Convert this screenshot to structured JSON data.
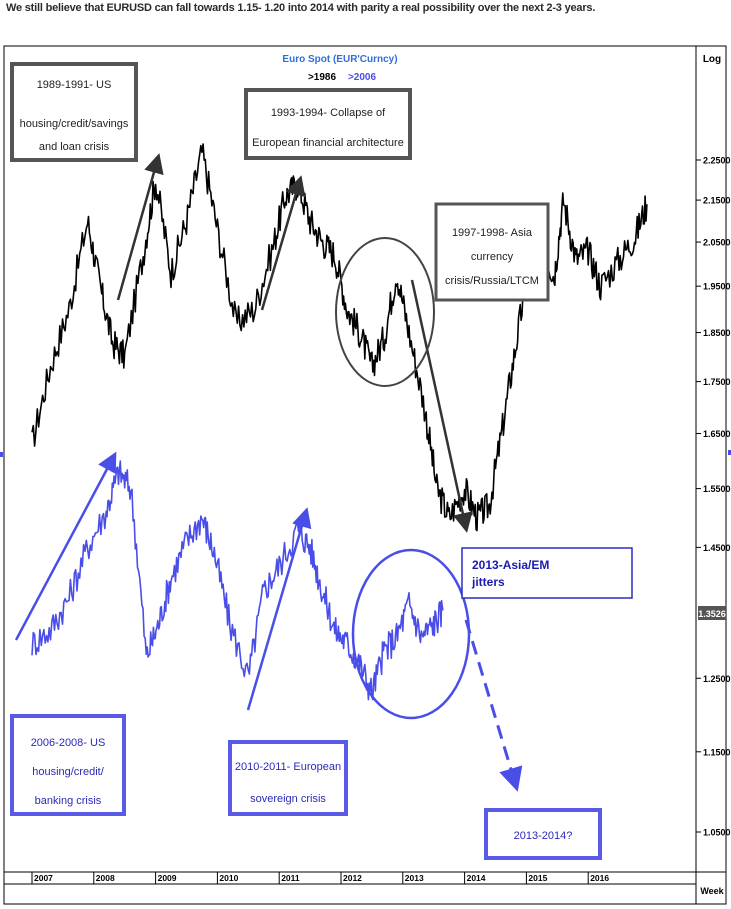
{
  "headline": "We still believe that EURUSD  can fall towards 1.15- 1.20 into 2014 with parity a real possibility  over the next 2-3 years.",
  "chart_data": {
    "type": "line",
    "title": "Euro  Spot  (EUR'Curncy)",
    "legend": [
      {
        "label": ">1986",
        "color": "#000000"
      },
      {
        "label": ">2006",
        "color": "#4a4ee8"
      }
    ],
    "scale_label": "Log",
    "x_axis_label": "Week",
    "x_ticks": [
      "2007",
      "2008",
      "2009",
      "2010",
      "2011",
      "2012",
      "2013",
      "2014",
      "2015",
      "2016"
    ],
    "y_ticks": [
      "2.2500",
      "2.1500",
      "2.0500",
      "1.9500",
      "1.8500",
      "1.7500",
      "1.6500",
      "1.5500",
      "1.4500",
      "1.3526",
      "1.2500",
      "1.1500",
      "1.0500"
    ],
    "last_value": "1.3526",
    "series": [
      {
        "name": ">1986",
        "color": "#000000",
        "x": [
          2007.0,
          2007.3,
          2007.6,
          2007.9,
          2008.1,
          2008.3,
          2008.5,
          2008.8,
          2009.0,
          2009.25,
          2009.5,
          2009.75,
          2010.0,
          2010.3,
          2010.6,
          2010.9,
          2011.1,
          2011.3,
          2011.5,
          2011.7,
          2011.9,
          2012.1,
          2012.3,
          2012.5,
          2012.7,
          2012.9,
          2013.1,
          2013.35,
          2013.55,
          2013.75,
          2014.0,
          2014.2,
          2014.4,
          2014.6,
          2014.8,
          2015.0,
          2015.25,
          2015.45,
          2015.6,
          2015.8,
          2016.0,
          2016.2,
          2016.5,
          2016.75,
          2016.95
        ],
        "y": [
          1.63,
          1.78,
          1.9,
          2.1,
          1.95,
          1.83,
          1.8,
          2.02,
          2.2,
          1.98,
          2.1,
          2.27,
          2.08,
          1.87,
          1.9,
          2.04,
          2.16,
          2.19,
          2.1,
          2.05,
          2.02,
          1.9,
          1.85,
          1.78,
          1.84,
          1.98,
          1.85,
          1.7,
          1.55,
          1.5,
          1.55,
          1.5,
          1.52,
          1.65,
          1.8,
          1.96,
          2.05,
          1.97,
          2.15,
          2.01,
          2.03,
          1.95,
          2.01,
          2.06,
          2.14
        ]
      },
      {
        "name": ">2006",
        "color": "#4a4ee8",
        "x": [
          2007.0,
          2007.3,
          2007.6,
          2007.9,
          2008.2,
          2008.4,
          2008.6,
          2008.85,
          2009.05,
          2009.25,
          2009.5,
          2009.75,
          2009.95,
          2010.2,
          2010.5,
          2010.75,
          2011.0,
          2011.3,
          2011.5,
          2011.7,
          2011.9,
          2012.1,
          2012.3,
          2012.5,
          2012.7,
          2012.9,
          2013.1,
          2013.3,
          2013.5,
          2013.65
        ],
        "y": [
          1.3,
          1.32,
          1.37,
          1.45,
          1.51,
          1.58,
          1.55,
          1.28,
          1.33,
          1.4,
          1.46,
          1.5,
          1.44,
          1.33,
          1.25,
          1.38,
          1.42,
          1.48,
          1.45,
          1.38,
          1.32,
          1.3,
          1.27,
          1.23,
          1.29,
          1.31,
          1.36,
          1.31,
          1.33,
          1.35
        ]
      }
    ],
    "annotations": [
      "1989-1991- US housing/credit/savings and loan crisis",
      "1993-1994- Collapse of European financial architecture",
      "1997-1998- Asia currency crisis/Russia/LTCM",
      "2013-Asia/EM jitters",
      "2006-2008- US housing/credit/ banking crisis",
      "2010-2011- European sovereign crisis",
      "2013-2014?"
    ]
  },
  "boxes": {
    "b1": [
      "1989-1991- US",
      "housing/credit/savings",
      "and loan crisis"
    ],
    "b2": [
      "1993-1994- Collapse of",
      "European financial architecture"
    ],
    "b3": [
      "1997-1998- Asia",
      "currency",
      "crisis/Russia/LTCM"
    ],
    "b4": [
      "2013-Asia/EM",
      "jitters"
    ],
    "b5": [
      "2006-2008- US",
      "housing/credit/",
      "banking crisis"
    ],
    "b6": [
      "2010-2011- European",
      "sovereign  crisis"
    ],
    "b7": [
      "2013-2014?"
    ]
  }
}
